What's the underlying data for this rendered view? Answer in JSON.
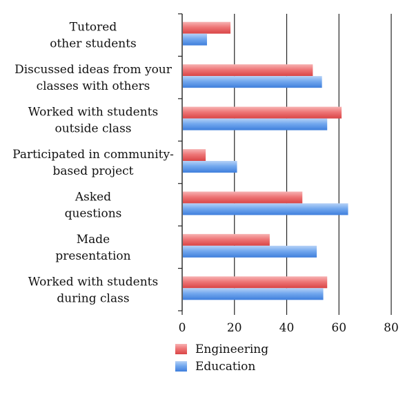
{
  "chart_data": {
    "type": "bar",
    "orientation": "horizontal",
    "title": "",
    "xlabel": "",
    "ylabel": "",
    "xlim": [
      0,
      80
    ],
    "x_ticks": [
      "0",
      "20",
      "40",
      "60",
      "80"
    ],
    "grid": true,
    "legend_position": "bottom-left",
    "categories": [
      [
        "Tutored",
        "other students"
      ],
      [
        "Discussed ideas from your",
        "classes with others"
      ],
      [
        "Worked with students",
        "outside class"
      ],
      [
        "Participated in community-",
        "based project"
      ],
      [
        "Asked",
        "questions"
      ],
      [
        "Made",
        "presentation"
      ],
      [
        "Worked with students",
        "during class"
      ]
    ],
    "series": [
      {
        "name": "Engineering",
        "color": "#e8575a",
        "values": [
          18.5,
          50,
          61,
          9,
          46,
          33.5,
          55.5
        ]
      },
      {
        "name": "Education",
        "color": "#4f8fe8",
        "values": [
          9.5,
          53.5,
          55.5,
          21,
          63.5,
          51.5,
          54
        ]
      }
    ]
  }
}
